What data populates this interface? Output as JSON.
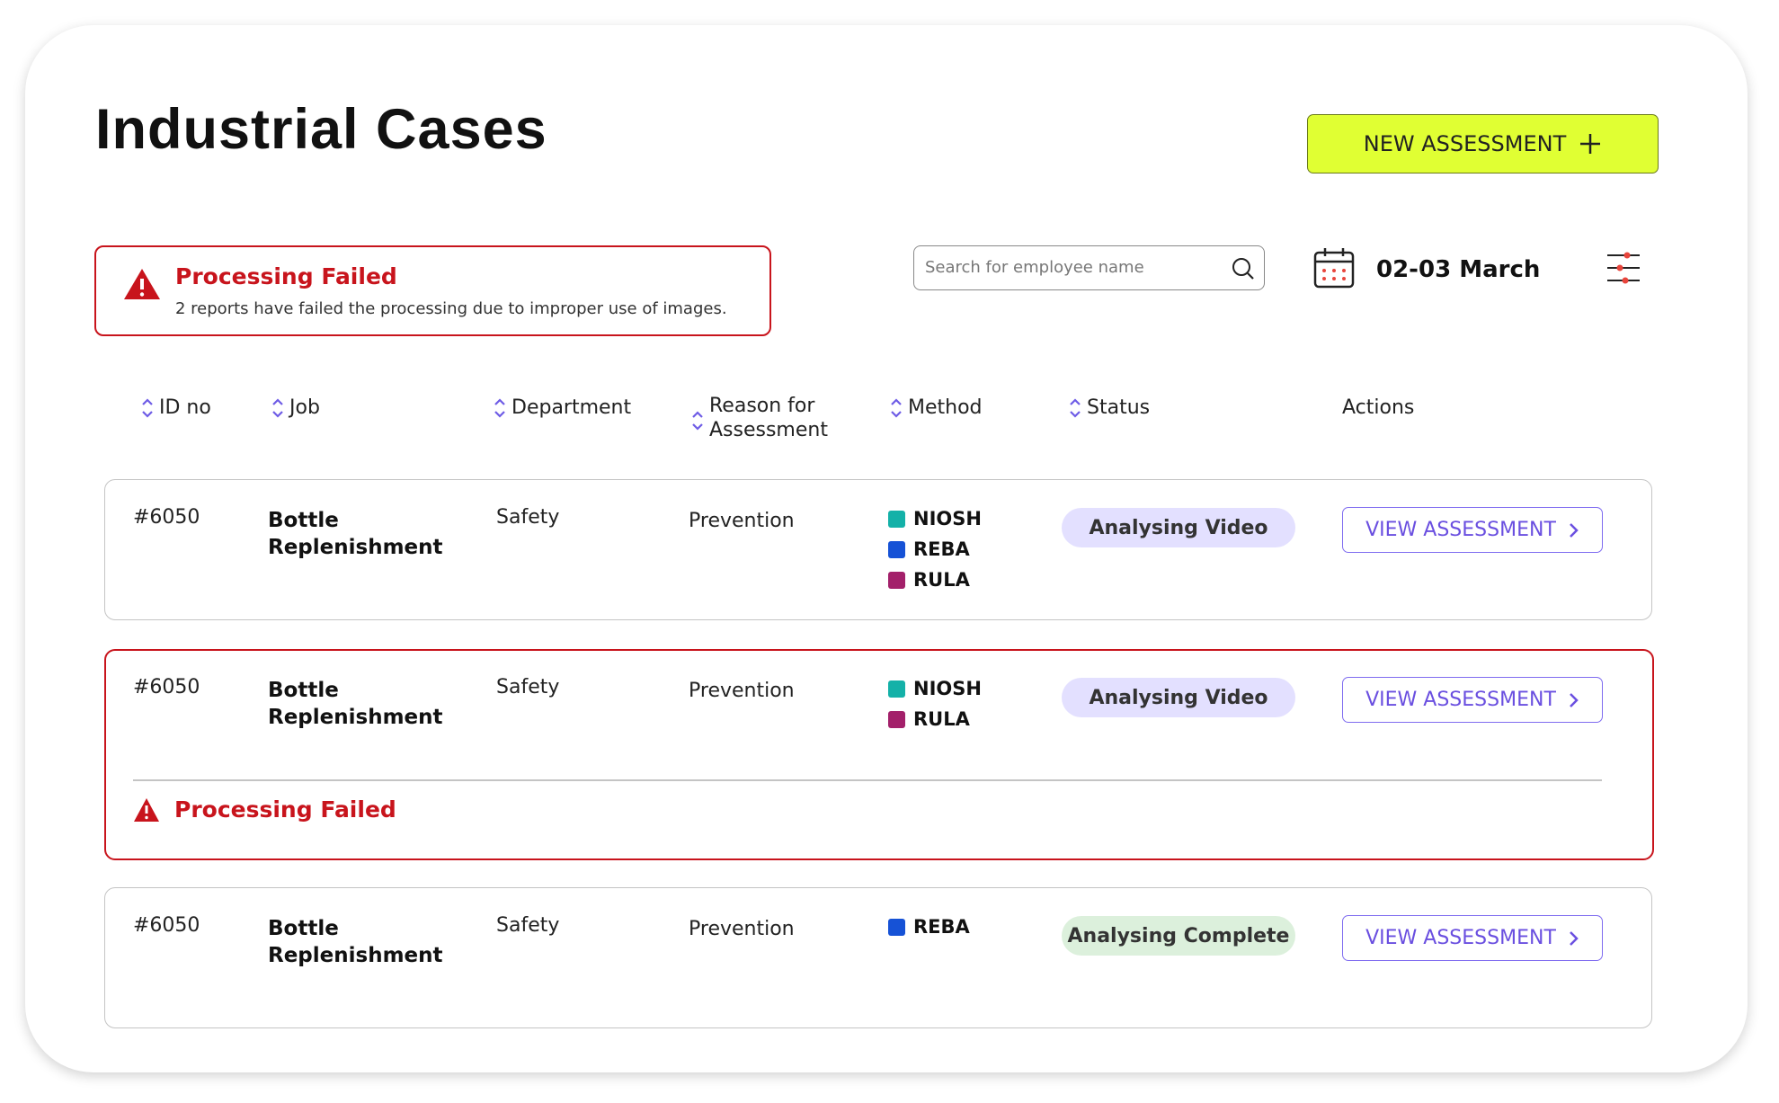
{
  "header": {
    "title": "Industrial Cases",
    "new_button": "NEW ASSESSMENT",
    "alert_title": "Processing Failed",
    "alert_message": "2 reports have failed the processing due to improper use of images.",
    "search_placeholder": "Search for employee name",
    "date": "02-03 March"
  },
  "table": {
    "columns": [
      "ID no",
      "Job",
      "Department",
      "Reason for Assessment",
      "Method",
      "Status",
      "Actions"
    ],
    "rows": [
      {
        "id": "#6050",
        "job": "Bottle Replenishment",
        "department": "Safety",
        "reason": "Prevention",
        "methods": [
          {
            "name": "NIOSH",
            "color": "#14b1a8"
          },
          {
            "name": "REBA",
            "color": "#1652d6"
          },
          {
            "name": "RULA",
            "color": "#a3206a"
          }
        ],
        "status": "Analysing Video",
        "status_color": "#e3e0ff",
        "action": "VIEW ASSESSMENT"
      },
      {
        "id": "#6050",
        "job": "Bottle Replenishment",
        "department": "Safety",
        "reason": "Prevention",
        "methods": [
          {
            "name": "NIOSH",
            "color": "#14b1a8"
          },
          {
            "name": "RULA",
            "color": "#a3206a"
          }
        ],
        "status": "Analysing Video",
        "status_color": "#e3e0ff",
        "action": "VIEW ASSESSMENT",
        "error": "Processing Failed"
      },
      {
        "id": "#6050",
        "job": "Bottle Replenishment",
        "department": "Safety",
        "reason": "Prevention",
        "methods": [
          {
            "name": "REBA",
            "color": "#1652d6"
          }
        ],
        "status": "Analysing Complete",
        "status_color": "#dcf0dc",
        "action": "VIEW ASSESSMENT"
      }
    ]
  }
}
